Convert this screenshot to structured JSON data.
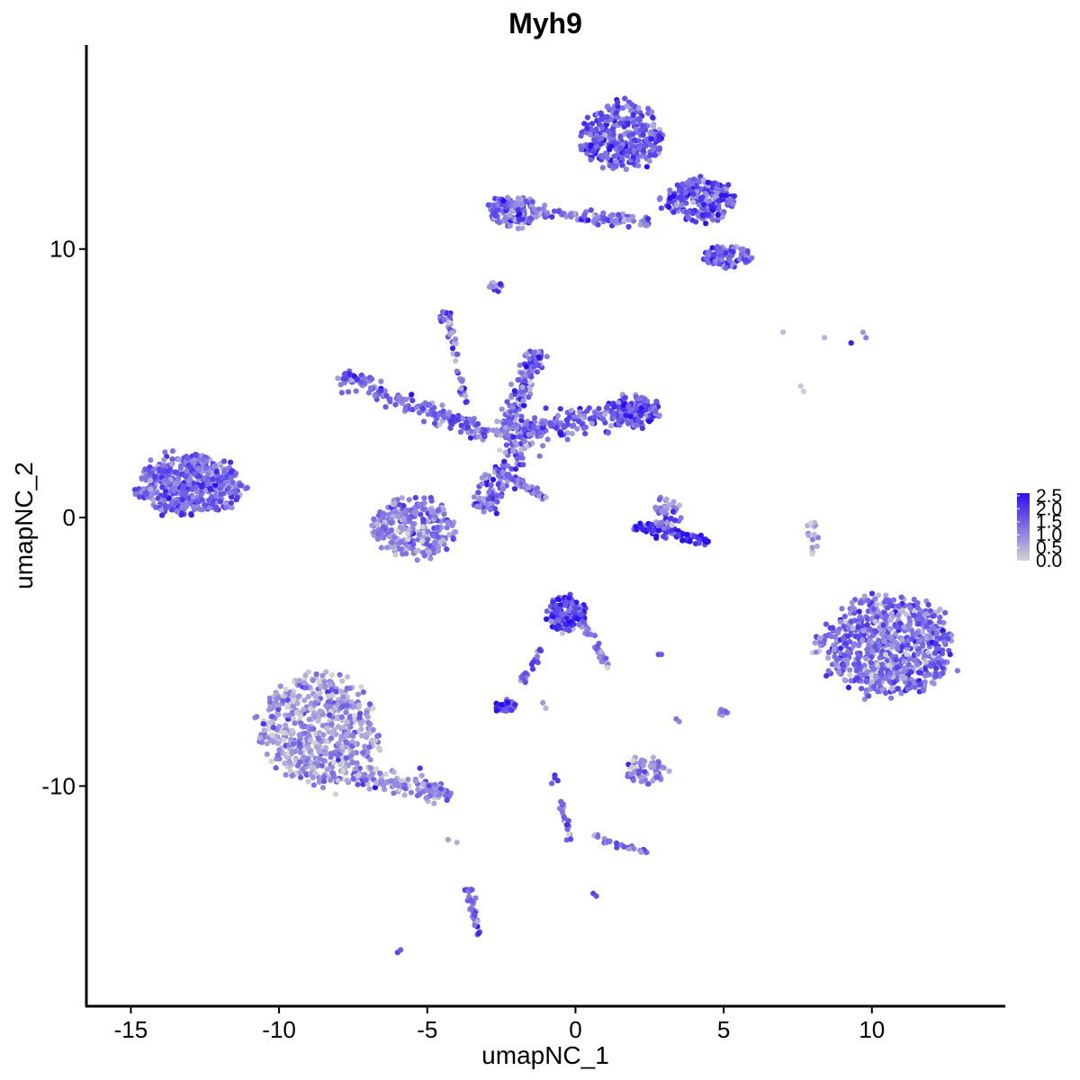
{
  "chart_data": {
    "type": "scatter",
    "title": "Myh9",
    "xlabel": "umapNC_1",
    "ylabel": "umapNC_2",
    "xlim": [
      -16.5,
      14.5
    ],
    "ylim": [
      -18.2,
      17.6
    ],
    "x_ticks": [
      {
        "value": -15,
        "label": "-15"
      },
      {
        "value": -10,
        "label": "-10"
      },
      {
        "value": -5,
        "label": "-5"
      },
      {
        "value": 0,
        "label": "0"
      },
      {
        "value": 5,
        "label": "5"
      },
      {
        "value": 10,
        "label": "10"
      }
    ],
    "y_ticks": [
      {
        "value": 10,
        "label": "10"
      },
      {
        "value": 0,
        "label": "0"
      },
      {
        "value": -10,
        "label": "-10"
      }
    ],
    "grid": false,
    "legend": {
      "placement": "right",
      "type": "colorbar",
      "low_color": "#d3d3d3",
      "high_color": "#2b0ff5",
      "range": [
        0,
        2.6
      ],
      "entries": [
        {
          "value": 2.5,
          "label": "2.5"
        },
        {
          "value": 2.0,
          "label": "2.0"
        },
        {
          "value": 1.5,
          "label": "1.5"
        },
        {
          "value": 1.0,
          "label": "1.0"
        },
        {
          "value": 0.5,
          "label": "0.5"
        },
        {
          "value": 0.0,
          "label": "0.0"
        }
      ]
    },
    "clusters": [
      {
        "kind": "blob",
        "center": [
          -13.0,
          1.2
        ],
        "spread": [
          1.25,
          0.8
        ],
        "count": 520,
        "expression": 1.4
      },
      {
        "kind": "blob",
        "center": [
          -8.6,
          -7.9
        ],
        "spread": [
          1.4,
          1.5
        ],
        "count": 600,
        "expression": 0.8
      },
      {
        "kind": "segment",
        "from": [
          -7.5,
          -9.6
        ],
        "to": [
          -4.2,
          -10.3
        ],
        "width": 0.4,
        "count": 140,
        "expression": 0.9
      },
      {
        "kind": "blob",
        "center": [
          10.6,
          -4.8
        ],
        "spread": [
          1.55,
          1.35
        ],
        "count": 720,
        "expression": 1.3
      },
      {
        "kind": "blob",
        "center": [
          -5.5,
          -0.4
        ],
        "spread": [
          1.0,
          0.8
        ],
        "count": 280,
        "expression": 1.1
      },
      {
        "kind": "segment",
        "from": [
          -3.3,
          0.3
        ],
        "to": [
          -1.5,
          3.3
        ],
        "width": 0.5,
        "count": 140,
        "expression": 1.3
      },
      {
        "kind": "segment",
        "from": [
          -8.0,
          5.3
        ],
        "to": [
          -3.0,
          3.1
        ],
        "width": 0.35,
        "count": 180,
        "expression": 1.5
      },
      {
        "kind": "segment",
        "from": [
          -2.4,
          3.2
        ],
        "to": [
          2.4,
          4.0
        ],
        "width": 0.45,
        "count": 200,
        "expression": 1.5
      },
      {
        "kind": "segment",
        "from": [
          -2.5,
          3.0
        ],
        "to": [
          -1.2,
          6.2
        ],
        "width": 0.4,
        "count": 140,
        "expression": 1.4
      },
      {
        "kind": "segment",
        "from": [
          -4.3,
          7.4
        ],
        "to": [
          -3.7,
          4.2
        ],
        "width": 0.12,
        "count": 40,
        "expression": 1.2
      },
      {
        "kind": "segment",
        "from": [
          -2.6,
          1.8
        ],
        "to": [
          -1.0,
          0.7
        ],
        "width": 0.12,
        "count": 60,
        "expression": 1.4
      },
      {
        "kind": "blob",
        "center": [
          2.0,
          4.0
        ],
        "spread": [
          0.6,
          0.45
        ],
        "count": 100,
        "expression": 1.8
      },
      {
        "kind": "blob",
        "center": [
          -4.4,
          7.5
        ],
        "spread": [
          0.15,
          0.15
        ],
        "count": 14,
        "expression": 1.4
      },
      {
        "kind": "blob",
        "center": [
          1.6,
          14.2
        ],
        "spread": [
          1.0,
          0.9
        ],
        "count": 320,
        "expression": 1.6
      },
      {
        "kind": "blob",
        "center": [
          4.2,
          11.8
        ],
        "spread": [
          0.9,
          0.6
        ],
        "count": 220,
        "expression": 1.6
      },
      {
        "kind": "blob",
        "center": [
          5.1,
          9.7
        ],
        "spread": [
          0.6,
          0.3
        ],
        "count": 100,
        "expression": 1.5
      },
      {
        "kind": "blob",
        "center": [
          -2.1,
          11.4
        ],
        "spread": [
          0.6,
          0.45
        ],
        "count": 130,
        "expression": 1.5
      },
      {
        "kind": "segment",
        "from": [
          -1.5,
          11.4
        ],
        "to": [
          2.5,
          11.0
        ],
        "width": 0.22,
        "count": 90,
        "expression": 1.3
      },
      {
        "kind": "blob",
        "center": [
          -2.7,
          8.6
        ],
        "spread": [
          0.2,
          0.15
        ],
        "count": 14,
        "expression": 1.4
      },
      {
        "kind": "segment",
        "from": [
          2.0,
          -0.3
        ],
        "to": [
          4.5,
          -0.9
        ],
        "width": 0.25,
        "count": 80,
        "expression": 2.3
      },
      {
        "kind": "blob",
        "center": [
          3.1,
          0.2
        ],
        "spread": [
          0.35,
          0.5
        ],
        "count": 50,
        "expression": 1.3
      },
      {
        "kind": "blob",
        "center": [
          -0.3,
          -3.6
        ],
        "spread": [
          0.5,
          0.5
        ],
        "count": 130,
        "expression": 2.0
      },
      {
        "kind": "segment",
        "from": [
          0.2,
          -3.8
        ],
        "to": [
          1.1,
          -5.6
        ],
        "width": 0.15,
        "count": 40,
        "expression": 1.2
      },
      {
        "kind": "segment",
        "from": [
          -1.1,
          -4.8
        ],
        "to": [
          -1.8,
          -6.1
        ],
        "width": 0.1,
        "count": 20,
        "expression": 1.7
      },
      {
        "kind": "blob",
        "center": [
          -2.4,
          -7.0
        ],
        "spread": [
          0.3,
          0.15
        ],
        "count": 35,
        "expression": 2.0
      },
      {
        "kind": "blob",
        "center": [
          2.4,
          -9.4
        ],
        "spread": [
          0.5,
          0.35
        ],
        "count": 60,
        "expression": 0.9
      },
      {
        "kind": "segment",
        "from": [
          -0.5,
          -10.5
        ],
        "to": [
          -0.2,
          -12.0
        ],
        "width": 0.1,
        "count": 25,
        "expression": 1.1
      },
      {
        "kind": "segment",
        "from": [
          0.6,
          -11.9
        ],
        "to": [
          2.5,
          -12.5
        ],
        "width": 0.1,
        "count": 25,
        "expression": 1.1
      },
      {
        "kind": "segment",
        "from": [
          -3.6,
          -13.7
        ],
        "to": [
          -3.3,
          -15.6
        ],
        "width": 0.12,
        "count": 35,
        "expression": 1.4
      },
      {
        "kind": "blob",
        "center": [
          5.0,
          -7.2
        ],
        "spread": [
          0.1,
          0.15
        ],
        "count": 10,
        "expression": 1.1
      },
      {
        "kind": "blob",
        "center": [
          8.0,
          -0.7
        ],
        "spread": [
          0.15,
          0.45
        ],
        "count": 16,
        "expression": 0.6
      },
      {
        "kind": "blob",
        "center": [
          8.2,
          -4.8
        ],
        "spread": [
          0.2,
          0.3
        ],
        "count": 14,
        "expression": 0.9
      }
    ],
    "points": [
      [
        7.0,
        6.9,
        0.3
      ],
      [
        8.4,
        6.7,
        0.4
      ],
      [
        9.3,
        6.5,
        2.4
      ],
      [
        9.7,
        6.9,
        0.8
      ],
      [
        9.8,
        6.7,
        1.1
      ],
      [
        7.6,
        4.9,
        0.2
      ],
      [
        7.7,
        4.7,
        0.1
      ],
      [
        -6.0,
        -16.2,
        1.9
      ],
      [
        -5.9,
        -16.1,
        1.6
      ],
      [
        0.6,
        -14.0,
        1.9
      ],
      [
        0.7,
        -14.1,
        1.7
      ],
      [
        -0.7,
        -9.6,
        2.2
      ],
      [
        -0.6,
        -9.8,
        2.1
      ],
      [
        -0.8,
        -9.9,
        1.5
      ],
      [
        -0.7,
        -9.7,
        2.0
      ],
      [
        2.8,
        -5.1,
        1.8
      ],
      [
        2.9,
        -5.1,
        1.6
      ],
      [
        -1.1,
        -6.9,
        0.8
      ],
      [
        -1.0,
        -7.1,
        0.4
      ],
      [
        3.4,
        -7.5,
        1.3
      ],
      [
        3.5,
        -7.6,
        1.0
      ],
      [
        -4.0,
        -12.1,
        0.5
      ],
      [
        -4.3,
        -12.0,
        0.7
      ],
      [
        -7.7,
        -9.8,
        0.6
      ]
    ]
  }
}
